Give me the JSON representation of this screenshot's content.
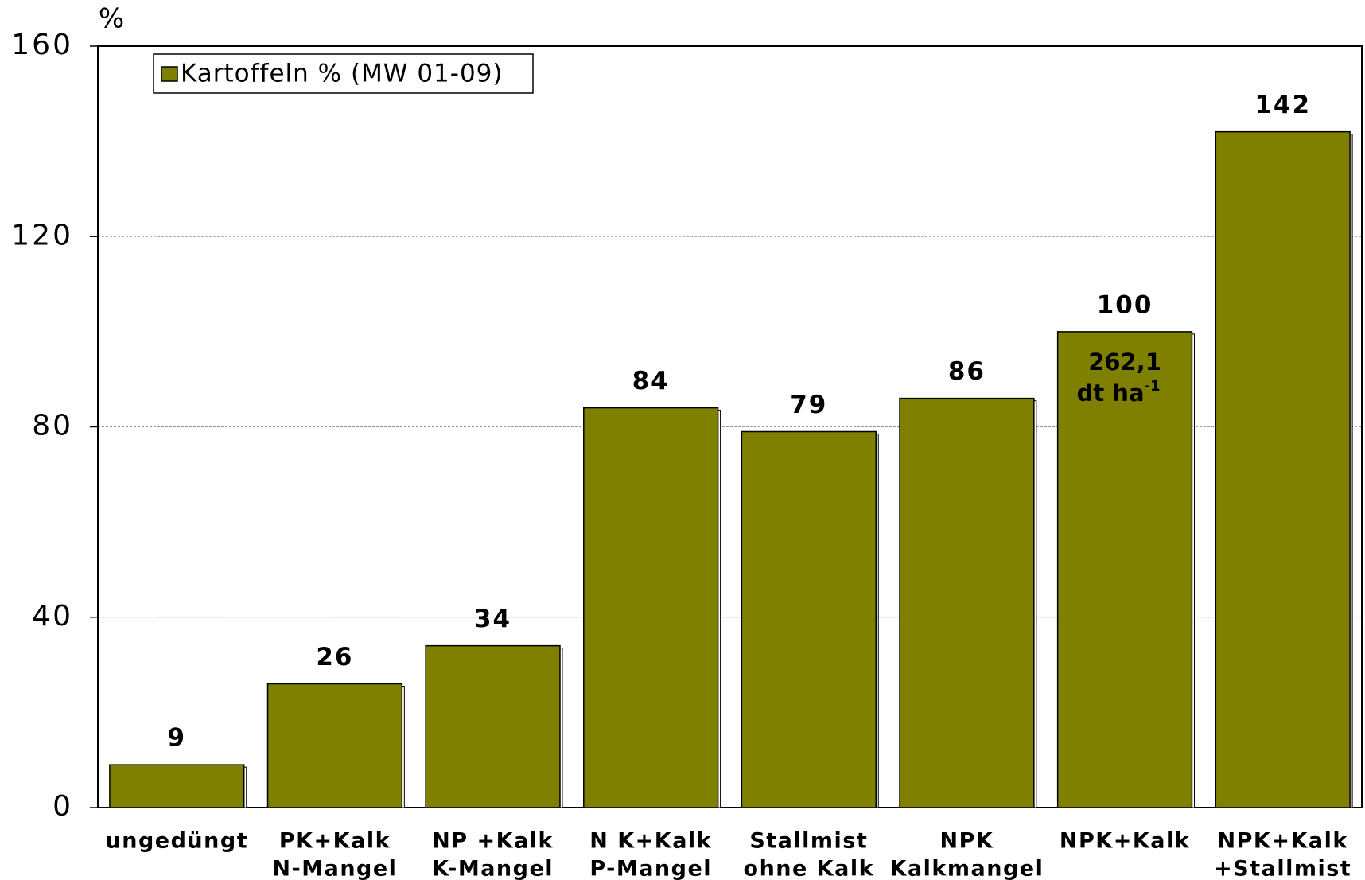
{
  "chart_data": {
    "type": "bar",
    "y_unit": "%",
    "categories": [
      [
        "ungedüngt"
      ],
      [
        "PK+Kalk",
        "N-Mangel"
      ],
      [
        "NP +Kalk",
        "K-Mangel"
      ],
      [
        "N K+Kalk",
        "P-Mangel"
      ],
      [
        "Stallmist",
        "ohne Kalk"
      ],
      [
        "NPK",
        "Kalkmangel"
      ],
      [
        "NPK+Kalk"
      ],
      [
        "NPK+Kalk",
        "+Stallmist"
      ]
    ],
    "series": [
      {
        "name": "Kartoffeln % (MW 01-09)",
        "color": "#808000",
        "values": [
          9,
          26,
          34,
          84,
          79,
          86,
          100,
          142
        ]
      }
    ],
    "annotation": {
      "category": 6,
      "lines": [
        "262,1",
        "dt ha"
      ],
      "superscript": "-1"
    },
    "ylim": [
      0,
      160
    ],
    "yticks": [
      0,
      40,
      80,
      120,
      160
    ],
    "grid": true,
    "legend": "top-left"
  }
}
